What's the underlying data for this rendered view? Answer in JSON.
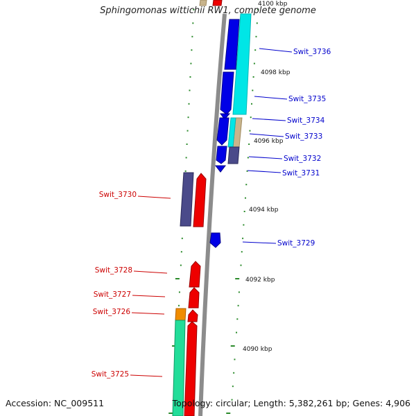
{
  "title": "Sphingomonas wittichii RW1, complete genome",
  "footer": {
    "accession": "Accession: NC_009511",
    "summary": "Topology: circular; Length: 5,382,261 bp; Genes: 4,906"
  },
  "colors": {
    "backbone": "#8c8c8c",
    "forward_label": "#0000cc",
    "reverse_label": "#cc0000",
    "tick": "#2a8a2a",
    "blue_gene": "#0000e6",
    "cyan_gene": "#00e6e6",
    "red_gene": "#ee0000",
    "slate_gene": "#4a4a8a",
    "tan_gene": "#c8b48c",
    "green_gene": "#22dd99",
    "orange_gene": "#f08c00"
  },
  "scale_labels": [
    "4100 kbp",
    "4098 kbp",
    "4096 kbp",
    "4094 kbp",
    "4092 kbp",
    "4090 kbp"
  ],
  "forward_genes": [
    "Swit_3736",
    "Swit_3735",
    "Swit_3734",
    "Swit_3733",
    "Swit_3732",
    "Swit_3731",
    "Swit_3729"
  ],
  "reverse_genes": [
    "Swit_3730",
    "Swit_3728",
    "Swit_3727",
    "Swit_3726",
    "Swit_3725"
  ]
}
